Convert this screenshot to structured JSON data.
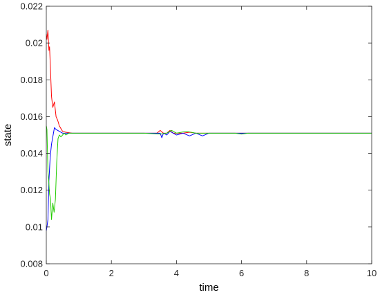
{
  "chart_data": {
    "type": "line",
    "title": "",
    "xlabel": "time",
    "ylabel": "state",
    "xlim": [
      0,
      10
    ],
    "ylim": [
      0.008,
      0.022
    ],
    "x_ticks": [
      "0",
      "2",
      "4",
      "6",
      "8",
      "10"
    ],
    "y_ticks": [
      "0.008",
      "0.01",
      "0.012",
      "0.014",
      "0.016",
      "0.018",
      "0.02",
      "0.022"
    ],
    "grid": false,
    "legend": "none",
    "series": [
      {
        "color": "#ff0000",
        "x": [
          0,
          0.02,
          0.05,
          0.08,
          0.1,
          0.13,
          0.16,
          0.2,
          0.25,
          0.3,
          0.35,
          0.4,
          0.5,
          0.6,
          0.8,
          1,
          2,
          3,
          3.4,
          3.5,
          3.6,
          3.7,
          3.8,
          3.9,
          4.0,
          4.2,
          4.4,
          4.6,
          4.8,
          5,
          6,
          7,
          8,
          9,
          10
        ],
        "y": [
          0.0205,
          0.0202,
          0.0207,
          0.0196,
          0.0198,
          0.0185,
          0.0171,
          0.0165,
          0.0168,
          0.016,
          0.0158,
          0.0155,
          0.0152,
          0.01515,
          0.0151,
          0.0151,
          0.0151,
          0.0151,
          0.0151,
          0.01525,
          0.0151,
          0.0151,
          0.01525,
          0.0151,
          0.0151,
          0.0151,
          0.01515,
          0.0151,
          0.0151,
          0.0151,
          0.0151,
          0.0151,
          0.0151,
          0.0151,
          0.0151
        ]
      },
      {
        "color": "#0000ff",
        "x": [
          0,
          0.02,
          0.05,
          0.08,
          0.12,
          0.16,
          0.2,
          0.25,
          0.3,
          0.35,
          0.4,
          0.5,
          0.6,
          0.8,
          1,
          2,
          3,
          3.4,
          3.5,
          3.55,
          3.6,
          3.7,
          3.8,
          3.9,
          4.0,
          4.2,
          4.4,
          4.6,
          4.8,
          5,
          6,
          10
        ],
        "y": [
          0.0098,
          0.01,
          0.0104,
          0.0125,
          0.0138,
          0.0145,
          0.0149,
          0.0154,
          0.0153,
          0.01525,
          0.0152,
          0.0151,
          0.0151,
          0.0151,
          0.0151,
          0.0151,
          0.0151,
          0.0151,
          0.0151,
          0.01485,
          0.0151,
          0.015,
          0.0152,
          0.0151,
          0.015,
          0.0151,
          0.01495,
          0.0151,
          0.01495,
          0.0151,
          0.0151,
          0.0151
        ]
      },
      {
        "color": "#22cc00",
        "x": [
          0,
          0.02,
          0.05,
          0.08,
          0.1,
          0.13,
          0.16,
          0.2,
          0.24,
          0.28,
          0.32,
          0.36,
          0.4,
          0.45,
          0.5,
          0.55,
          0.6,
          0.7,
          0.8,
          1,
          2,
          3,
          3.5,
          3.7,
          3.85,
          4.0,
          4.3,
          4.6,
          4.8,
          5,
          5.8,
          6,
          6.2,
          7,
          10
        ],
        "y": [
          0.0155,
          0.0153,
          0.013,
          0.0124,
          0.0118,
          0.0115,
          0.0104,
          0.0113,
          0.0108,
          0.0115,
          0.0135,
          0.0148,
          0.015,
          0.0149,
          0.015,
          0.0151,
          0.015,
          0.0151,
          0.0151,
          0.0151,
          0.0151,
          0.0151,
          0.01505,
          0.0151,
          0.01525,
          0.0151,
          0.0152,
          0.0151,
          0.0151,
          0.0151,
          0.0151,
          0.01505,
          0.0151,
          0.0151,
          0.0151
        ]
      }
    ]
  }
}
